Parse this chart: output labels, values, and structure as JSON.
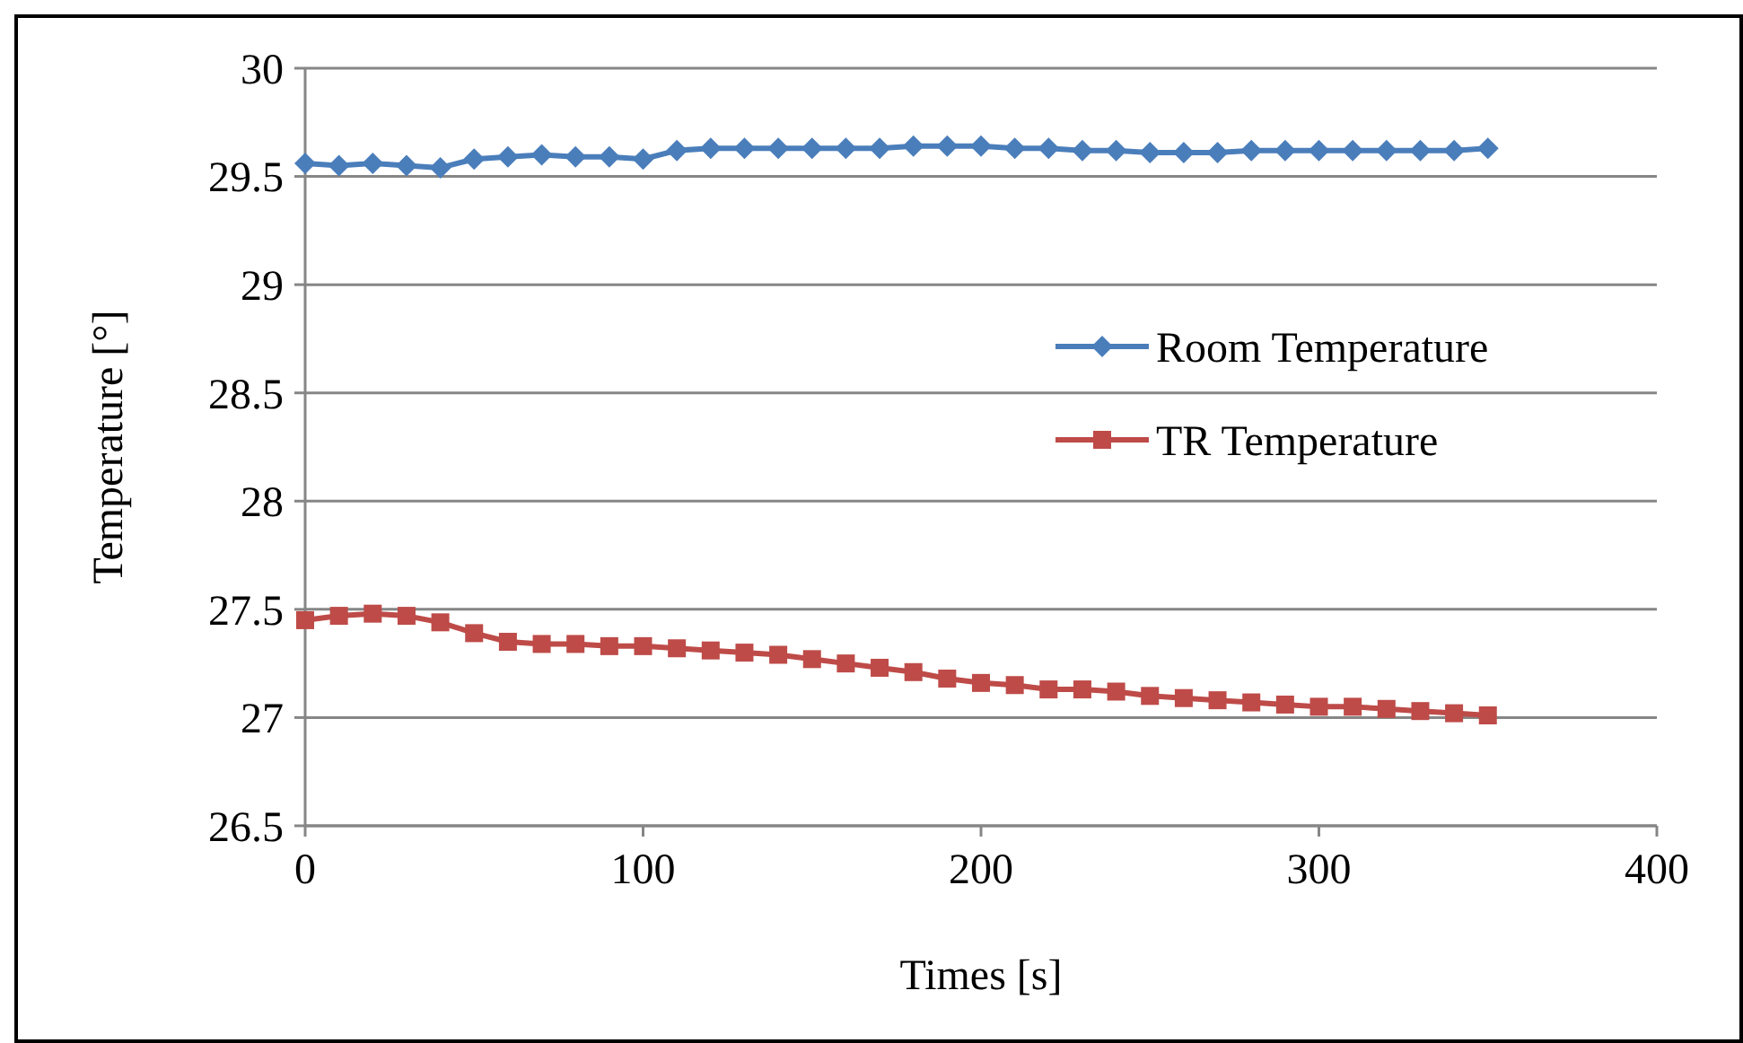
{
  "chart_data": {
    "type": "line",
    "xlabel": "Times [s]",
    "ylabel": "Temperature [°]",
    "x": [
      0,
      10,
      20,
      30,
      40,
      50,
      60,
      70,
      80,
      90,
      100,
      110,
      120,
      130,
      140,
      150,
      160,
      170,
      180,
      190,
      200,
      210,
      220,
      230,
      240,
      250,
      260,
      270,
      280,
      290,
      300,
      310,
      320,
      330,
      340,
      350
    ],
    "series": [
      {
        "name": "Room Temperature",
        "color": "#4a7ebb",
        "marker": "diamond",
        "values": [
          29.56,
          29.55,
          29.56,
          29.55,
          29.54,
          29.58,
          29.59,
          29.6,
          29.59,
          29.59,
          29.58,
          29.62,
          29.63,
          29.63,
          29.63,
          29.63,
          29.63,
          29.63,
          29.64,
          29.64,
          29.64,
          29.63,
          29.63,
          29.62,
          29.62,
          29.61,
          29.61,
          29.61,
          29.62,
          29.62,
          29.62,
          29.62,
          29.62,
          29.62,
          29.62,
          29.63
        ]
      },
      {
        "name": "TR Temperature",
        "color": "#be4b48",
        "marker": "square",
        "values": [
          27.45,
          27.47,
          27.48,
          27.47,
          27.44,
          27.39,
          27.35,
          27.34,
          27.34,
          27.33,
          27.33,
          27.32,
          27.31,
          27.3,
          27.29,
          27.27,
          27.25,
          27.23,
          27.21,
          27.18,
          27.16,
          27.15,
          27.13,
          27.13,
          27.12,
          27.1,
          27.09,
          27.08,
          27.07,
          27.06,
          27.05,
          27.05,
          27.04,
          27.03,
          27.02,
          27.01
        ]
      }
    ],
    "xlim": [
      0,
      400
    ],
    "xticks": [
      0,
      100,
      200,
      300,
      400
    ],
    "ylim": [
      26.5,
      30
    ],
    "yticks": [
      26.5,
      27,
      27.5,
      28,
      28.5,
      29,
      29.5,
      30
    ],
    "grid": "y",
    "legend": "right",
    "line_style": "solid"
  }
}
